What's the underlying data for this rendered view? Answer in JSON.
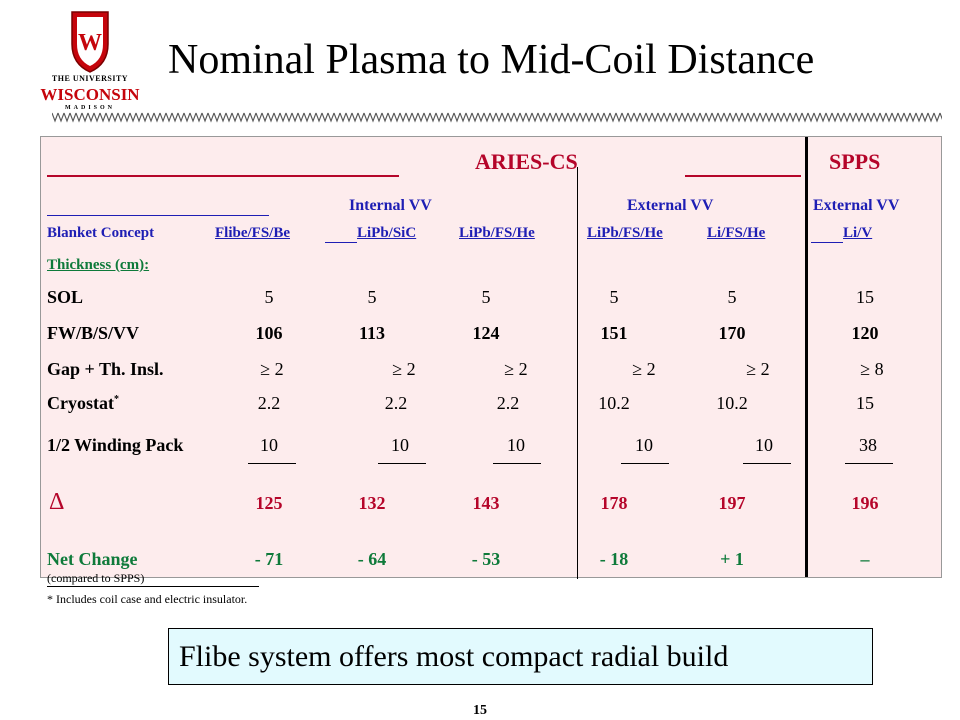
{
  "logo": {
    "line1": "THE UNIVERSITY",
    "line2": "WISCONSIN",
    "line3": "MADISON"
  },
  "title": "Nominal Plasma to Mid-Coil Distance",
  "table": {
    "group1": "ARIES-CS",
    "group2": "SPPS",
    "sub_internal": "Internal VV",
    "sub_external": "External VV",
    "sub_external2": "External VV",
    "blanket_label": "Blanket Concept",
    "blankets": [
      "Flibe/FS/Be",
      "LiPb/SiC",
      "LiPb/FS/He",
      "LiPb/FS/He",
      "Li/FS/He",
      "Li/V"
    ],
    "thickness_label": "Thickness (cm):",
    "rows": [
      {
        "label": "SOL",
        "values": [
          "5",
          "5",
          "5",
          "5",
          "5",
          "15"
        ]
      },
      {
        "label": "FW/B/S/VV",
        "values": [
          "106",
          "113",
          "124",
          "151",
          "170",
          "120"
        ]
      },
      {
        "label": "Gap + Th. Insl.",
        "values": [
          "≥ 2",
          "≥ 2",
          "≥ 2",
          "≥ 2",
          "≥ 2",
          "≥ 8"
        ]
      },
      {
        "label": "Cryostat",
        "sup": "*",
        "values": [
          "2.2",
          "2.2",
          "2.2",
          "10.2",
          "10.2",
          "15"
        ]
      },
      {
        "label": "1/2 Winding Pack",
        "values": [
          "10",
          "10",
          "10",
          "10",
          "10",
          "38"
        ]
      }
    ],
    "delta_label": "Δ",
    "delta_values": [
      "125",
      "132",
      "143",
      "178",
      "197",
      "196"
    ],
    "net_label": "Net Change",
    "net_values": [
      "- 71",
      "- 64",
      "- 53",
      "- 18",
      "+ 1",
      "–"
    ],
    "net_note": "(compared to SPPS)"
  },
  "footnote": "*  Includes coil case and electric insulator.",
  "callout": "Flibe system offers most compact radial build",
  "page_number": "15",
  "colors": {
    "panel_bg": "#fdeced",
    "maroon": "#b5052a",
    "blue": "#1e1eb4",
    "green": "#0e7a3a",
    "callout_bg": "#e2fafe",
    "brand_red": "#c5050c"
  }
}
